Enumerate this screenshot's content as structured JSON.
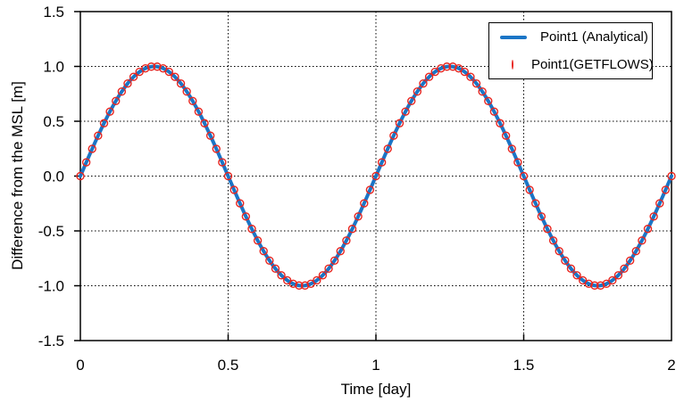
{
  "figure": {
    "background": "#FFFFFF",
    "frame_color": "#000000",
    "text_color": "#000000"
  },
  "chart_data": {
    "type": "line",
    "title": "",
    "xlabel": "Time [day]",
    "ylabel": "Difference from the MSL [m]",
    "xlim": [
      0,
      2
    ],
    "ylim": [
      -1.5,
      1.5
    ],
    "xticks": [
      0,
      0.5,
      1,
      1.5,
      2
    ],
    "xtick_labels": [
      "0",
      "0.5",
      "1",
      "1.5",
      "2"
    ],
    "yticks": [
      -1.5,
      -1.0,
      -0.5,
      0.0,
      0.5,
      1.0,
      1.5
    ],
    "ytick_labels": [
      "-1.5",
      "-1.0",
      "-0.5",
      "0.0",
      "0.5",
      "1.0",
      "1.5"
    ],
    "grid": {
      "style": "dotted",
      "color": "#000000",
      "on": true
    },
    "legend": {
      "position": "top-right",
      "border_color": "#000000",
      "background": "#FFFFFF"
    },
    "series": [
      {
        "name": "Point1 (Analytical)",
        "type": "line",
        "color": "#1B75C6",
        "line_width": 4,
        "model": {
          "function": "sine",
          "formula": "y = 1.0 * sin(2*pi*t)",
          "amplitude": 1.0,
          "period_days": 1.0,
          "phase_rad": 0.0,
          "t_start": 0.0,
          "t_end": 2.0,
          "t_step": 0.01
        }
      },
      {
        "name": "Point1(GETFLOWS)",
        "type": "scatter",
        "color": "#E8251F",
        "marker": "open-circle",
        "marker_radius": 4,
        "marker_stroke_width": 1.4,
        "model": {
          "function": "sine",
          "formula": "y = 1.0 * sin(2*pi*t)",
          "amplitude": 1.0,
          "period_days": 1.0,
          "phase_rad": 0.0,
          "t_start": 0.0,
          "t_end": 2.0,
          "t_step": 0.02
        }
      }
    ]
  }
}
